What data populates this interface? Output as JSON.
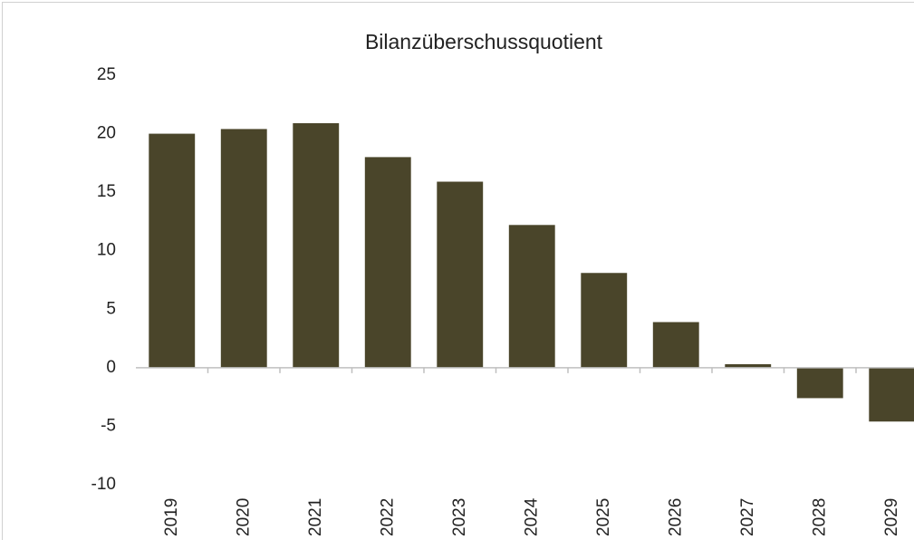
{
  "chart_data": {
    "type": "bar",
    "title": "Bilanzüberschussquotient",
    "categories": [
      "2019",
      "2020",
      "2021",
      "2022",
      "2023",
      "2024",
      "2025",
      "2026",
      "2027",
      "2028",
      "2029"
    ],
    "values": [
      20.0,
      20.4,
      20.9,
      18.0,
      15.9,
      12.2,
      8.1,
      3.9,
      0.3,
      -2.6,
      -4.6
    ],
    "color": "#4a452a",
    "ylim": [
      -10,
      25
    ],
    "yticks": [
      -10,
      -5,
      0,
      5,
      10,
      15,
      20,
      25
    ],
    "grid": false
  }
}
